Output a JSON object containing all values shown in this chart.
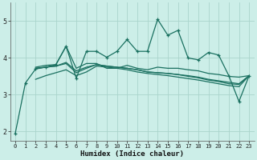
{
  "xlabel": "Humidex (Indice chaleur)",
  "ylim": [
    1.75,
    5.5
  ],
  "xlim": [
    -0.5,
    23.5
  ],
  "yticks": [
    2,
    3,
    4,
    5
  ],
  "xticks": [
    0,
    1,
    2,
    3,
    4,
    5,
    6,
    7,
    8,
    9,
    10,
    11,
    12,
    13,
    14,
    15,
    16,
    17,
    18,
    19,
    20,
    21,
    22,
    23
  ],
  "bg_color": "#cceee8",
  "line_color": "#1a7060",
  "grid_color": "#aad4cc",
  "series": [
    {
      "x": [
        0,
        1,
        2,
        3,
        4,
        5,
        6,
        7,
        8,
        9,
        10,
        11,
        12,
        13,
        14,
        15,
        16,
        17,
        18,
        19,
        20,
        21,
        22,
        23
      ],
      "y": [
        1.95,
        3.32,
        3.7,
        3.75,
        3.82,
        4.32,
        3.45,
        4.18,
        4.18,
        4.02,
        4.18,
        4.5,
        4.18,
        4.18,
        5.05,
        4.62,
        4.75,
        4.0,
        3.95,
        4.15,
        4.08,
        3.52,
        2.82,
        3.52
      ],
      "marker": "+",
      "lw": 0.9
    },
    {
      "x": [
        2,
        3,
        4,
        5,
        6,
        7,
        8,
        9,
        10,
        11,
        12,
        13,
        14,
        15,
        16,
        17,
        18,
        19,
        20,
        21,
        22,
        23
      ],
      "y": [
        3.75,
        3.8,
        3.82,
        4.32,
        3.72,
        3.85,
        3.85,
        3.72,
        3.72,
        3.8,
        3.72,
        3.68,
        3.75,
        3.72,
        3.72,
        3.68,
        3.65,
        3.58,
        3.55,
        3.5,
        3.48,
        3.52
      ],
      "marker": null,
      "lw": 0.9
    },
    {
      "x": [
        2,
        3,
        4,
        5,
        6,
        7,
        8,
        9,
        10,
        11,
        12,
        13,
        14,
        15,
        16,
        17,
        18,
        19,
        20,
        21,
        22,
        23
      ],
      "y": [
        3.72,
        3.75,
        3.78,
        3.88,
        3.65,
        3.75,
        3.82,
        3.78,
        3.75,
        3.72,
        3.68,
        3.62,
        3.6,
        3.58,
        3.55,
        3.52,
        3.48,
        3.42,
        3.38,
        3.34,
        3.3,
        3.52
      ],
      "marker": null,
      "lw": 0.9
    },
    {
      "x": [
        2,
        3,
        4,
        5,
        6,
        7,
        8,
        9,
        10,
        11,
        12,
        13,
        14,
        15,
        16,
        17,
        18,
        19,
        20,
        21,
        22,
        23
      ],
      "y": [
        3.42,
        3.52,
        3.6,
        3.68,
        3.52,
        3.62,
        3.78,
        3.75,
        3.72,
        3.68,
        3.62,
        3.58,
        3.55,
        3.52,
        3.48,
        3.44,
        3.4,
        3.35,
        3.3,
        3.25,
        3.22,
        3.52
      ],
      "marker": null,
      "lw": 0.9
    },
    {
      "x": [
        2,
        3,
        4,
        5,
        6,
        7,
        8,
        9,
        10,
        11,
        12,
        13,
        14,
        15,
        16,
        17,
        18,
        19,
        20,
        21,
        22,
        23
      ],
      "y": [
        3.72,
        3.75,
        3.78,
        3.85,
        3.6,
        3.72,
        3.82,
        3.78,
        3.75,
        3.72,
        3.68,
        3.62,
        3.6,
        3.58,
        3.55,
        3.5,
        3.46,
        3.4,
        3.36,
        3.3,
        3.28,
        3.52
      ],
      "marker": null,
      "lw": 0.9
    }
  ]
}
